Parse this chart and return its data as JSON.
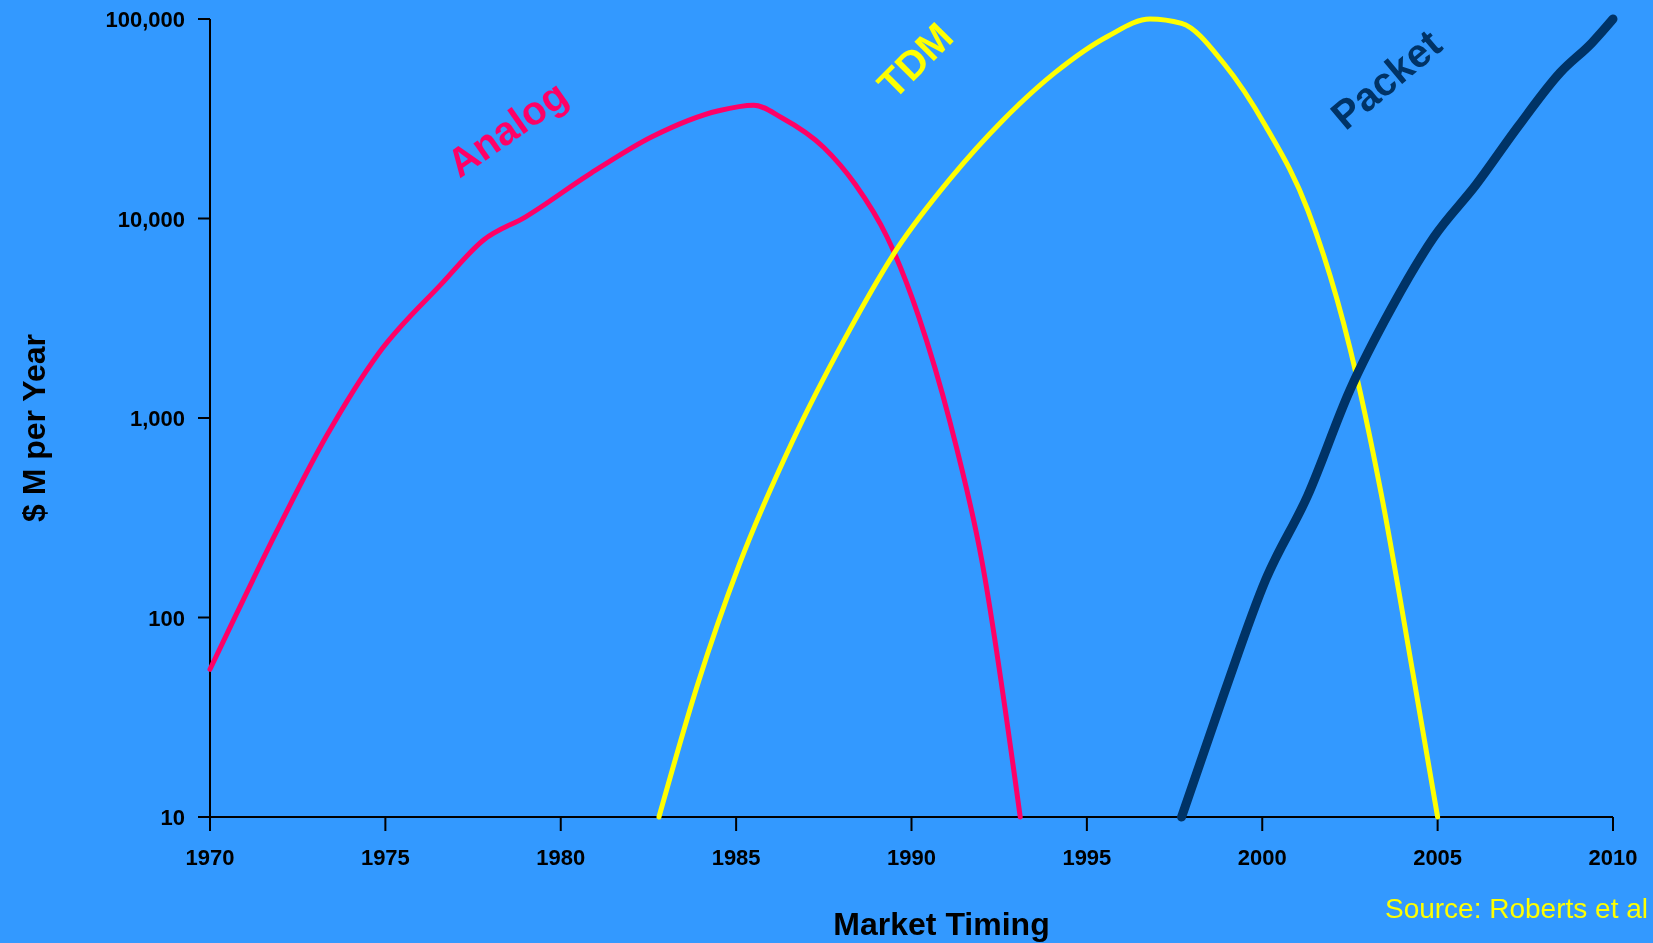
{
  "chart_data": {
    "type": "line",
    "xlabel": "Market Timing",
    "ylabel": "$ M per Year",
    "log": true,
    "xlim": [
      1970,
      2010
    ],
    "xticks": [
      1970,
      1975,
      1980,
      1985,
      1990,
      1995,
      2000,
      2005,
      2010
    ],
    "ylim": [
      10,
      100000
    ],
    "yticks": [
      {
        "value": 10,
        "label": "10"
      },
      {
        "value": 100,
        "label": "100"
      },
      {
        "value": 1000,
        "label": "1,000"
      },
      {
        "value": 10000,
        "label": "10,000"
      },
      {
        "value": 100000,
        "label": "100,000"
      }
    ],
    "grid": false,
    "legend": false,
    "marker": "none",
    "line_style": "solid",
    "annotations": [
      "Source: Roberts et al"
    ],
    "series": [
      {
        "name": "Analog",
        "color": "#ff0066",
        "x": [
          1970,
          1970.5,
          1971.9,
          1973.3,
          1974.8,
          1976.6,
          1977.8,
          1979,
          1980.8,
          1982.6,
          1984.5,
          1985.5,
          1986.3,
          1987.5,
          1988.4,
          1989.3,
          1990.2,
          1991.1,
          1992,
          1993.1
        ],
        "values": [
          55,
          84,
          270,
          800,
          2100,
          4700,
          7800,
          10200,
          16600,
          25700,
          34700,
          37000,
          32000,
          22700,
          14800,
          8100,
          3240,
          950,
          195,
          10
        ]
      },
      {
        "name": "TDM",
        "color": "#ffff00",
        "x": [
          1982.8,
          1983.9,
          1985.1,
          1986.6,
          1988.1,
          1989.6,
          1991.1,
          1992.6,
          1994.1,
          1995.6,
          1996.8,
          1997.7,
          1998.9,
          2000.1,
          2001.3,
          2002.5,
          2003.4,
          2004.3,
          2005
        ],
        "values": [
          10,
          46,
          186,
          760,
          2500,
          7100,
          15800,
          31000,
          54000,
          82000,
          100000,
          95000,
          60000,
          29000,
          11000,
          2240,
          410,
          52,
          10
        ]
      },
      {
        "name": "Packet",
        "color": "#003366",
        "x": [
          1997.7,
          1998.9,
          2000.1,
          2001.3,
          2002.5,
          2003.7,
          2004.9,
          2006.1,
          2007.3,
          2008.5,
          2009.4,
          2010
        ],
        "values": [
          10,
          41,
          155,
          410,
          1380,
          3600,
          8100,
          14800,
          29000,
          54000,
          76000,
          100000
        ]
      }
    ]
  }
}
